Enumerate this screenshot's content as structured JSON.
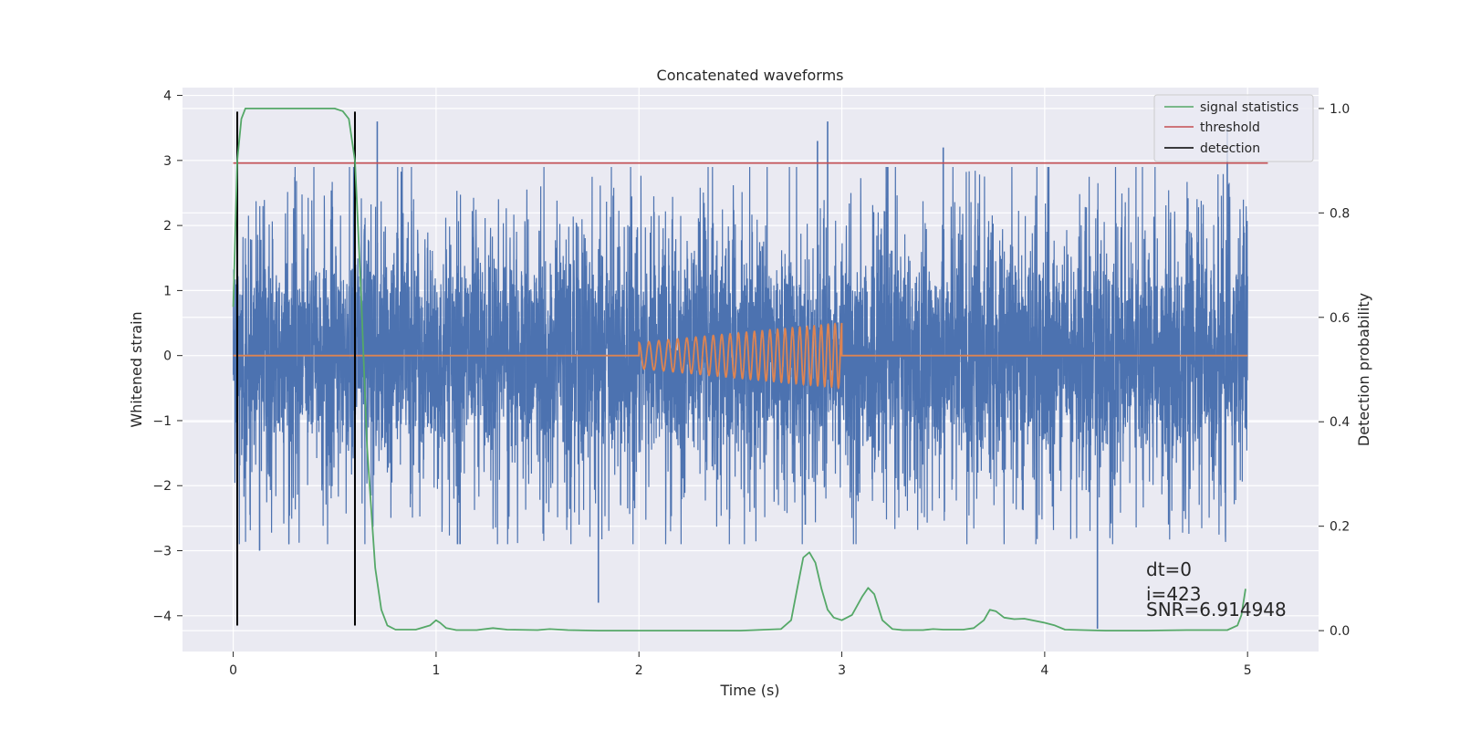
{
  "chart_data": {
    "type": "line",
    "title": "Concatenated waveforms",
    "xlabel": "Time (s)",
    "ylabel": "Whitened strain",
    "y2label": "Detection probability",
    "xlim": [
      -0.25,
      5.35
    ],
    "ylim": [
      -4.55,
      4.12
    ],
    "y2lim": [
      -0.04,
      1.04
    ],
    "x_ticks": [
      0,
      1,
      2,
      3,
      4,
      5
    ],
    "y_ticks": [
      4,
      3,
      2,
      1,
      0,
      -1,
      -2,
      -3,
      -4
    ],
    "y2_ticks": [
      1.0,
      0.8,
      0.6,
      0.4,
      0.2,
      0.0
    ],
    "grid": true,
    "legend_position": "top-right",
    "colors": {
      "background": "#EAEAF2",
      "strain": "#4C72B0",
      "injected": "#DD8452",
      "statistics": "#55A868",
      "threshold": "#C44E52",
      "detection": "#000000"
    },
    "series": [
      {
        "name": "",
        "axis": "left",
        "kind": "noise",
        "x_range": [
          0,
          5
        ],
        "amplitude_envelope": 1.4,
        "peak_spikes": [
          {
            "x": 0.71,
            "y": 3.6
          },
          {
            "x": 2.82,
            "y": -2.6
          },
          {
            "x": 2.88,
            "y": 3.3
          },
          {
            "x": 2.93,
            "y": 3.6
          },
          {
            "x": 3.5,
            "y": 3.2
          },
          {
            "x": 4.26,
            "y": -4.2
          },
          {
            "x": 4.9,
            "y": 3.5
          },
          {
            "x": 1.8,
            "y": -3.8
          },
          {
            "x": 0.13,
            "y": -3.0
          }
        ]
      },
      {
        "name": "",
        "axis": "left",
        "kind": "chirp",
        "x_range": [
          0,
          5
        ],
        "chirp_range": [
          2,
          3
        ],
        "amp_start": 0.2,
        "amp_end": 0.5,
        "freq_start": 20,
        "freq_end": 30
      },
      {
        "name": "signal statistics",
        "axis": "right",
        "x": [
          0,
          0.02,
          0.04,
          0.06,
          0.1,
          0.2,
          0.3,
          0.4,
          0.5,
          0.54,
          0.57,
          0.6,
          0.63,
          0.66,
          0.7,
          0.73,
          0.76,
          0.8,
          0.9,
          0.97,
          1.0,
          1.02,
          1.05,
          1.1,
          1.2,
          1.28,
          1.35,
          1.5,
          1.56,
          1.65,
          1.8,
          2.0,
          2.5,
          2.7,
          2.75,
          2.78,
          2.81,
          2.84,
          2.87,
          2.9,
          2.93,
          2.96,
          3.0,
          3.05,
          3.1,
          3.13,
          3.16,
          3.2,
          3.25,
          3.3,
          3.4,
          3.45,
          3.5,
          3.6,
          3.65,
          3.7,
          3.73,
          3.76,
          3.8,
          3.85,
          3.9,
          3.95,
          4.0,
          4.05,
          4.1,
          4.3,
          4.5,
          4.7,
          4.9,
          4.95,
          4.97,
          4.99
        ],
        "y": [
          0.62,
          0.9,
          0.98,
          1.0,
          1.0,
          1.0,
          1.0,
          1.0,
          1.0,
          0.995,
          0.98,
          0.9,
          0.65,
          0.35,
          0.12,
          0.04,
          0.01,
          0.002,
          0.002,
          0.01,
          0.02,
          0.015,
          0.005,
          0.001,
          0.001,
          0.005,
          0.002,
          0.001,
          0.003,
          0.001,
          0.0,
          0.0,
          0.0,
          0.003,
          0.02,
          0.08,
          0.14,
          0.15,
          0.13,
          0.08,
          0.04,
          0.025,
          0.02,
          0.03,
          0.065,
          0.082,
          0.07,
          0.02,
          0.003,
          0.001,
          0.001,
          0.003,
          0.002,
          0.002,
          0.005,
          0.02,
          0.04,
          0.037,
          0.025,
          0.022,
          0.023,
          0.019,
          0.015,
          0.01,
          0.002,
          0.0,
          0.0,
          0.001,
          0.001,
          0.01,
          0.03,
          0.08
        ]
      },
      {
        "name": "threshold",
        "axis": "left",
        "x": [
          0,
          5.1
        ],
        "y": [
          2.96,
          2.96
        ]
      },
      {
        "name": "detection",
        "axis": "left",
        "vlines": [
          0.02,
          0.6
        ],
        "y_range": [
          -4.15,
          3.75
        ]
      }
    ],
    "annotations": [
      "dt=0",
      "i=423",
      "SNR=6.914948"
    ]
  }
}
